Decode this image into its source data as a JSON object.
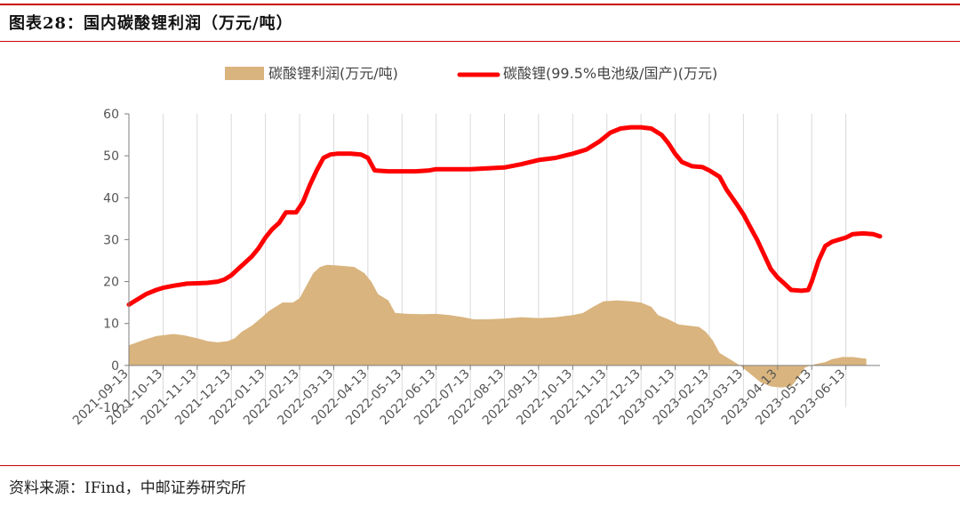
{
  "header": {
    "title": "图表28：国内碳酸锂利润（万元/吨）"
  },
  "footer": {
    "source": "资料来源：IFind，中邮证券研究所"
  },
  "colors": {
    "accent_rule": "#c8000a",
    "profit_area": "#d9b47e",
    "price_line": "#ff0000",
    "grid": "#d9d9d9",
    "axis": "#7f7f7f"
  },
  "chart_data": {
    "type": "area",
    "title": "",
    "xlabel": "",
    "ylabel": "",
    "ylim": [
      -10,
      60
    ],
    "yticks": [
      -10,
      0,
      10,
      20,
      30,
      40,
      50,
      60
    ],
    "x_tick_labels": [
      "2021-09-13",
      "2021-10-13",
      "2021-11-13",
      "2021-12-13",
      "2022-01-13",
      "2022-02-13",
      "2022-03-13",
      "2022-04-13",
      "2022-05-13",
      "2022-06-13",
      "2022-07-13",
      "2022-08-13",
      "2022-09-13",
      "2022-10-13",
      "2022-11-13",
      "2022-12-13",
      "2023-01-13",
      "2023-02-13",
      "2023-03-13",
      "2023-04-13",
      "2023-05-13",
      "2023-06-13"
    ],
    "grid": "vertical",
    "legend_position": "top-center",
    "series": [
      {
        "name": "碳酸锂利润(万元/吨)",
        "type": "area",
        "color": "#d9b47e",
        "points": [
          [
            0.0,
            4.8
          ],
          [
            0.4,
            6.0
          ],
          [
            0.8,
            7.0
          ],
          [
            1.0,
            7.2
          ],
          [
            1.3,
            7.5
          ],
          [
            1.6,
            7.2
          ],
          [
            2.0,
            6.5
          ],
          [
            2.3,
            5.8
          ],
          [
            2.6,
            5.5
          ],
          [
            2.9,
            5.8
          ],
          [
            3.1,
            6.5
          ],
          [
            3.3,
            8.0
          ],
          [
            3.6,
            9.5
          ],
          [
            3.9,
            11.5
          ],
          [
            4.1,
            13.0
          ],
          [
            4.3,
            14.0
          ],
          [
            4.5,
            15.0
          ],
          [
            4.8,
            15.0
          ],
          [
            5.0,
            16.0
          ],
          [
            5.2,
            19.0
          ],
          [
            5.4,
            22.0
          ],
          [
            5.6,
            23.5
          ],
          [
            5.8,
            24.0
          ],
          [
            6.2,
            23.8
          ],
          [
            6.6,
            23.5
          ],
          [
            6.9,
            22.0
          ],
          [
            7.1,
            20.0
          ],
          [
            7.3,
            17.0
          ],
          [
            7.6,
            15.5
          ],
          [
            7.8,
            12.5
          ],
          [
            8.2,
            12.3
          ],
          [
            8.6,
            12.2
          ],
          [
            9.0,
            12.3
          ],
          [
            9.4,
            12.0
          ],
          [
            9.8,
            11.5
          ],
          [
            10.1,
            11.0
          ],
          [
            10.5,
            11.0
          ],
          [
            11.0,
            11.2
          ],
          [
            11.5,
            11.5
          ],
          [
            12.0,
            11.3
          ],
          [
            12.5,
            11.5
          ],
          [
            13.0,
            12.0
          ],
          [
            13.3,
            12.5
          ],
          [
            13.6,
            14.0
          ],
          [
            13.9,
            15.3
          ],
          [
            14.3,
            15.5
          ],
          [
            14.7,
            15.3
          ],
          [
            15.0,
            15.0
          ],
          [
            15.3,
            14.0
          ],
          [
            15.5,
            12.0
          ],
          [
            15.8,
            11.0
          ],
          [
            16.1,
            9.8
          ],
          [
            16.4,
            9.5
          ],
          [
            16.7,
            9.2
          ],
          [
            16.9,
            8.0
          ],
          [
            17.1,
            6.0
          ],
          [
            17.3,
            3.0
          ],
          [
            17.6,
            1.5
          ],
          [
            17.9,
            0.0
          ],
          [
            18.2,
            -2.0
          ],
          [
            18.5,
            -4.0
          ],
          [
            18.8,
            -5.0
          ],
          [
            19.1,
            -5.3
          ],
          [
            19.4,
            -5.0
          ],
          [
            19.6,
            -3.0
          ],
          [
            19.8,
            -0.5
          ],
          [
            20.1,
            0.3
          ],
          [
            20.4,
            0.8
          ],
          [
            20.6,
            1.5
          ],
          [
            20.9,
            2.0
          ],
          [
            21.2,
            2.0
          ],
          [
            21.4,
            1.8
          ],
          [
            21.6,
            1.6
          ]
        ]
      },
      {
        "name": "碳酸锂(99.5%电池级/国产)(万元)",
        "type": "line",
        "color": "#ff0000",
        "points": [
          [
            0.0,
            14.5
          ],
          [
            0.2,
            15.5
          ],
          [
            0.5,
            17.0
          ],
          [
            0.8,
            18.0
          ],
          [
            1.0,
            18.5
          ],
          [
            1.3,
            19.0
          ],
          [
            1.7,
            19.5
          ],
          [
            2.0,
            19.6
          ],
          [
            2.3,
            19.7
          ],
          [
            2.6,
            20.0
          ],
          [
            2.8,
            20.5
          ],
          [
            3.0,
            21.5
          ],
          [
            3.2,
            23.0
          ],
          [
            3.4,
            24.5
          ],
          [
            3.6,
            26.0
          ],
          [
            3.8,
            28.0
          ],
          [
            4.0,
            30.5
          ],
          [
            4.2,
            32.5
          ],
          [
            4.4,
            34.0
          ],
          [
            4.6,
            36.5
          ],
          [
            4.9,
            36.5
          ],
          [
            5.1,
            39.0
          ],
          [
            5.3,
            43.0
          ],
          [
            5.5,
            46.5
          ],
          [
            5.7,
            49.5
          ],
          [
            5.9,
            50.3
          ],
          [
            6.1,
            50.5
          ],
          [
            6.5,
            50.5
          ],
          [
            6.8,
            50.3
          ],
          [
            7.0,
            49.5
          ],
          [
            7.2,
            46.5
          ],
          [
            7.6,
            46.3
          ],
          [
            8.0,
            46.3
          ],
          [
            8.4,
            46.3
          ],
          [
            8.8,
            46.5
          ],
          [
            9.0,
            46.8
          ],
          [
            9.5,
            46.8
          ],
          [
            10.0,
            46.8
          ],
          [
            10.5,
            47.0
          ],
          [
            11.0,
            47.2
          ],
          [
            11.5,
            48.0
          ],
          [
            12.0,
            49.0
          ],
          [
            12.5,
            49.5
          ],
          [
            13.0,
            50.5
          ],
          [
            13.4,
            51.5
          ],
          [
            13.8,
            53.5
          ],
          [
            14.1,
            55.5
          ],
          [
            14.4,
            56.5
          ],
          [
            14.7,
            56.8
          ],
          [
            15.0,
            56.8
          ],
          [
            15.3,
            56.5
          ],
          [
            15.6,
            55.0
          ],
          [
            15.8,
            53.0
          ],
          [
            16.0,
            50.5
          ],
          [
            16.2,
            48.5
          ],
          [
            16.5,
            47.5
          ],
          [
            16.8,
            47.3
          ],
          [
            17.0,
            46.5
          ],
          [
            17.3,
            45.0
          ],
          [
            17.5,
            42.0
          ],
          [
            17.8,
            38.5
          ],
          [
            18.0,
            36.0
          ],
          [
            18.2,
            33.0
          ],
          [
            18.4,
            30.0
          ],
          [
            18.6,
            26.5
          ],
          [
            18.8,
            23.0
          ],
          [
            19.0,
            21.0
          ],
          [
            19.2,
            19.5
          ],
          [
            19.4,
            18.0
          ],
          [
            19.7,
            17.8
          ],
          [
            19.9,
            18.0
          ],
          [
            20.0,
            20.0
          ],
          [
            20.2,
            25.0
          ],
          [
            20.4,
            28.5
          ],
          [
            20.6,
            29.5
          ],
          [
            20.8,
            30.0
          ],
          [
            21.0,
            30.5
          ],
          [
            21.2,
            31.3
          ],
          [
            21.5,
            31.5
          ],
          [
            21.8,
            31.3
          ],
          [
            22.0,
            30.8
          ]
        ]
      }
    ]
  }
}
